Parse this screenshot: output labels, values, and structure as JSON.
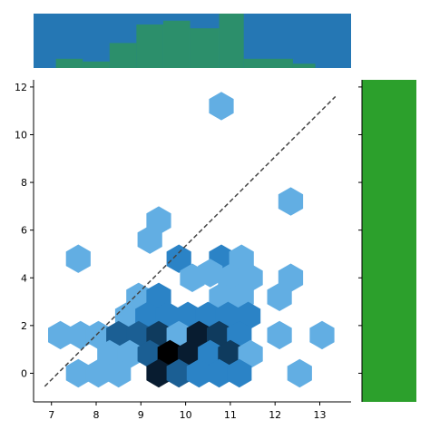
{
  "chart_data": {
    "type": "hexbin",
    "x_ticks": [
      7,
      8,
      9,
      10,
      11,
      12,
      13
    ],
    "y_ticks": [
      0,
      2,
      4,
      6,
      8,
      10,
      12
    ],
    "xlim": [
      6.6,
      13.7
    ],
    "ylim": [
      -1.2,
      12.3
    ],
    "grid": false,
    "reference_line": {
      "style": "dashed",
      "color": "#444444",
      "from": [
        6.85,
        -0.55
      ],
      "to": [
        13.35,
        11.6
      ]
    },
    "hex_radius_x": 0.3,
    "colors": {
      "light": "#62aee3",
      "mid": "#2b83c6",
      "midDark": "#1b5f94",
      "dark": "#0f3b5e",
      "darker": "#081c30",
      "black": "#000000",
      "marginal_top": "#2577b4",
      "marginal_top_overlay": "#2c8f6b",
      "marginal_right": "#2ca02c"
    },
    "hexbins": [
      {
        "x": 10.8,
        "y": 11.2,
        "level": "light"
      },
      {
        "x": 12.35,
        "y": 7.2,
        "level": "light"
      },
      {
        "x": 9.4,
        "y": 6.4,
        "level": "light"
      },
      {
        "x": 9.2,
        "y": 5.6,
        "level": "light"
      },
      {
        "x": 7.6,
        "y": 4.8,
        "level": "light"
      },
      {
        "x": 9.85,
        "y": 4.8,
        "level": "mid"
      },
      {
        "x": 10.8,
        "y": 4.8,
        "level": "mid"
      },
      {
        "x": 11.25,
        "y": 4.8,
        "level": "light"
      },
      {
        "x": 10.15,
        "y": 4.0,
        "level": "light"
      },
      {
        "x": 10.55,
        "y": 4.2,
        "level": "light"
      },
      {
        "x": 11.0,
        "y": 4.0,
        "level": "light"
      },
      {
        "x": 11.45,
        "y": 4.0,
        "level": "light"
      },
      {
        "x": 12.35,
        "y": 4.0,
        "level": "light"
      },
      {
        "x": 12.1,
        "y": 3.2,
        "level": "light"
      },
      {
        "x": 8.95,
        "y": 3.2,
        "level": "light"
      },
      {
        "x": 9.4,
        "y": 3.2,
        "level": "mid"
      },
      {
        "x": 10.8,
        "y": 3.2,
        "level": "light"
      },
      {
        "x": 11.25,
        "y": 3.2,
        "level": "light"
      },
      {
        "x": 8.7,
        "y": 2.4,
        "level": "light"
      },
      {
        "x": 9.15,
        "y": 2.4,
        "level": "mid"
      },
      {
        "x": 9.6,
        "y": 2.4,
        "level": "mid"
      },
      {
        "x": 10.05,
        "y": 2.4,
        "level": "mid"
      },
      {
        "x": 10.5,
        "y": 2.4,
        "level": "mid"
      },
      {
        "x": 10.95,
        "y": 2.4,
        "level": "mid"
      },
      {
        "x": 11.4,
        "y": 2.4,
        "level": "mid"
      },
      {
        "x": 7.2,
        "y": 1.6,
        "level": "light"
      },
      {
        "x": 7.65,
        "y": 1.6,
        "level": "light"
      },
      {
        "x": 8.05,
        "y": 1.6,
        "level": "light"
      },
      {
        "x": 8.5,
        "y": 1.6,
        "level": "midDark"
      },
      {
        "x": 8.95,
        "y": 1.6,
        "level": "midDark"
      },
      {
        "x": 9.4,
        "y": 1.6,
        "level": "dark"
      },
      {
        "x": 9.85,
        "y": 1.6,
        "level": "light"
      },
      {
        "x": 10.3,
        "y": 1.6,
        "level": "darker"
      },
      {
        "x": 10.75,
        "y": 1.6,
        "level": "dark"
      },
      {
        "x": 11.2,
        "y": 1.6,
        "level": "mid"
      },
      {
        "x": 12.1,
        "y": 1.6,
        "level": "light"
      },
      {
        "x": 13.05,
        "y": 1.6,
        "level": "light"
      },
      {
        "x": 8.3,
        "y": 0.8,
        "level": "light"
      },
      {
        "x": 8.75,
        "y": 0.8,
        "level": "light"
      },
      {
        "x": 9.2,
        "y": 0.8,
        "level": "midDark"
      },
      {
        "x": 9.65,
        "y": 0.8,
        "level": "black"
      },
      {
        "x": 10.1,
        "y": 0.8,
        "level": "darker"
      },
      {
        "x": 10.55,
        "y": 0.8,
        "level": "mid"
      },
      {
        "x": 11.0,
        "y": 0.8,
        "level": "dark"
      },
      {
        "x": 11.45,
        "y": 0.8,
        "level": "light"
      },
      {
        "x": 7.6,
        "y": 0.0,
        "level": "light"
      },
      {
        "x": 8.05,
        "y": 0.0,
        "level": "light"
      },
      {
        "x": 8.5,
        "y": 0.0,
        "level": "light"
      },
      {
        "x": 9.4,
        "y": 0.0,
        "level": "darker"
      },
      {
        "x": 9.85,
        "y": 0.0,
        "level": "midDark"
      },
      {
        "x": 10.3,
        "y": 0.0,
        "level": "mid"
      },
      {
        "x": 10.75,
        "y": 0.0,
        "level": "mid"
      },
      {
        "x": 11.2,
        "y": 0.0,
        "level": "mid"
      },
      {
        "x": 12.55,
        "y": 0.0,
        "level": "light"
      }
    ],
    "marginal_top_overlay": [
      {
        "x0": 6.6,
        "x1": 7.1,
        "h": 0.0
      },
      {
        "x0": 7.1,
        "x1": 7.7,
        "h": 0.17
      },
      {
        "x0": 7.7,
        "x1": 8.3,
        "h": 0.12
      },
      {
        "x0": 8.3,
        "x1": 8.9,
        "h": 0.46
      },
      {
        "x0": 8.9,
        "x1": 9.5,
        "h": 0.8
      },
      {
        "x0": 9.5,
        "x1": 10.1,
        "h": 0.87
      },
      {
        "x0": 10.1,
        "x1": 10.75,
        "h": 0.73
      },
      {
        "x0": 10.75,
        "x1": 11.3,
        "h": 1.0
      },
      {
        "x0": 11.3,
        "x1": 12.4,
        "h": 0.17
      },
      {
        "x0": 12.4,
        "x1": 12.9,
        "h": 0.08
      },
      {
        "x0": 12.9,
        "x1": 13.7,
        "h": 0.0
      }
    ],
    "marginal_right_fill": 1.0
  }
}
